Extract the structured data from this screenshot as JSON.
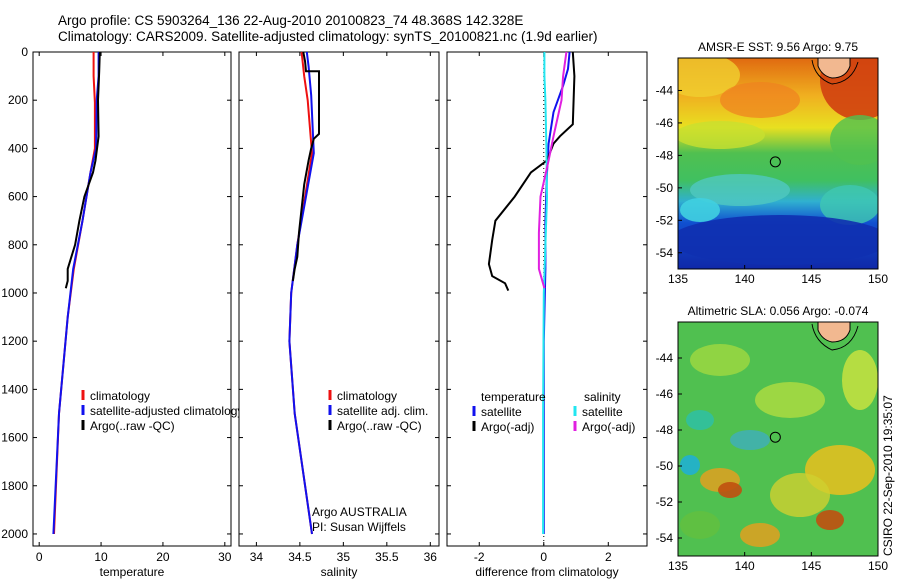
{
  "header": {
    "line1": "Argo profile: CS 5903264_136 22-Aug-2010 20100823_74 48.368S 142.328E",
    "line2": "Climatology: CARS2009. Satellite-adjusted climatology: synTS_20100821.nc (1.9d earlier)"
  },
  "credit": "CSIRO 22-Sep-2010 19:35:07",
  "colors": {
    "climatology": "#ee1111",
    "satellite": "#1111ee",
    "argo": "#000000",
    "sat_salinity": "#22e6f0",
    "argo_adj_salinity": "#e020e0"
  },
  "chart_data": [
    {
      "type": "line",
      "xlabel": "temperature",
      "xlim": [
        -1,
        31
      ],
      "ylim": [
        2050,
        0
      ],
      "xticks": [
        "0",
        "10",
        "20",
        "30"
      ],
      "xtick_values": [
        0,
        10,
        20,
        30
      ],
      "yticks": [
        "0",
        "200",
        "400",
        "600",
        "800",
        "1000",
        "1200",
        "1400",
        "1600",
        "1800",
        "2000"
      ],
      "legend": [
        "climatology",
        "satellite-adjusted climatology",
        "Argo(..raw -QC)"
      ],
      "series": [
        {
          "name": "climatology",
          "color": "#ee1111",
          "x": [
            8.8,
            8.8,
            9.0,
            9.0,
            8.3,
            7.0,
            5.6,
            4.6,
            3.2,
            2.4
          ],
          "y": [
            0,
            100,
            210,
            400,
            500,
            700,
            900,
            1100,
            1500,
            2000
          ]
        },
        {
          "name": "satellite-adjusted climatology",
          "color": "#1111ee",
          "x": [
            9.6,
            9.6,
            9.3,
            9.2,
            8.3,
            7.0,
            5.5,
            4.6,
            3.2,
            2.3
          ],
          "y": [
            0,
            100,
            200,
            400,
            500,
            700,
            900,
            1100,
            1500,
            2000
          ]
        },
        {
          "name": "Argo(..raw -QC)",
          "color": "#000000",
          "x": [
            9.8,
            9.7,
            9.5,
            9.6,
            9.1,
            8.7,
            7.3,
            6.5,
            5.8,
            5.2,
            4.6,
            4.6,
            4.3
          ],
          "y": [
            0,
            80,
            200,
            350,
            450,
            500,
            600,
            700,
            800,
            850,
            900,
            950,
            980
          ]
        }
      ]
    },
    {
      "type": "line",
      "xlabel": "salinity",
      "xlim": [
        33.8,
        36.1
      ],
      "ylim": [
        2050,
        0
      ],
      "xticks": [
        "34",
        "34.5",
        "35",
        "35.5",
        "36"
      ],
      "xtick_values": [
        34,
        34.5,
        35,
        35.5,
        36
      ],
      "legend": [
        "climatology",
        "satellite adj. clim.",
        "Argo(..raw -QC)"
      ],
      "annotation": [
        "Argo AUSTRALIA",
        "PI: Susan Wijffels"
      ],
      "series": [
        {
          "name": "climatology",
          "color": "#ee1111",
          "x": [
            34.52,
            34.55,
            34.59,
            34.64,
            34.56,
            34.47,
            34.4,
            34.38,
            34.44,
            34.56,
            34.64
          ],
          "y": [
            0,
            100,
            200,
            420,
            600,
            800,
            1000,
            1200,
            1500,
            1800,
            2000
          ]
        },
        {
          "name": "satellite adj. clim.",
          "color": "#1111ee",
          "x": [
            34.58,
            34.6,
            34.63,
            34.66,
            34.57,
            34.47,
            34.4,
            34.38,
            34.44,
            34.56,
            34.64
          ],
          "y": [
            0,
            60,
            180,
            420,
            600,
            800,
            1000,
            1200,
            1500,
            1800,
            2000
          ]
        },
        {
          "name": "Argo(..raw -QC)",
          "color": "#000000",
          "x": [
            34.54,
            34.56,
            34.57,
            34.72,
            34.72,
            34.66,
            34.63,
            34.6,
            34.55,
            34.52,
            34.49,
            34.47,
            34.44,
            34.42
          ],
          "y": [
            0,
            40,
            80,
            80,
            340,
            360,
            400,
            450,
            550,
            650,
            750,
            850,
            900,
            950
          ]
        }
      ]
    },
    {
      "type": "line",
      "xlabel": "difference from climatology",
      "xlim": [
        -3,
        3.2
      ],
      "ylim": [
        2050,
        0
      ],
      "xticks": [
        "-2",
        "0",
        "2"
      ],
      "xtick_values": [
        -2,
        0,
        2
      ],
      "legend_headers": [
        "temperature",
        "salinity"
      ],
      "legend": [
        "satellite",
        "Argo(-adj)",
        "satellite",
        "Argo(-adj)"
      ],
      "series": [
        {
          "name": "satellite",
          "color": "#1111ee",
          "x": [
            0.8,
            0.75,
            0.6,
            0.3,
            0.15,
            0.1,
            0.05,
            0.05,
            0,
            0
          ],
          "y": [
            0,
            70,
            140,
            250,
            380,
            500,
            700,
            900,
            1200,
            2000
          ]
        },
        {
          "name": "Argo(-adj)",
          "color": "#000000",
          "x": [
            0.9,
            0.95,
            0.9,
            0.5,
            0.3,
            0.1,
            -0.4,
            -0.9,
            -1.5,
            -1.6,
            -1.7,
            -1.6,
            -1.2,
            -1.1
          ],
          "y": [
            0,
            100,
            300,
            350,
            380,
            450,
            500,
            600,
            700,
            780,
            880,
            930,
            960,
            990
          ]
        },
        {
          "name": "satellite",
          "color": "#22e6f0",
          "x": [
            0.02,
            0.02,
            0.05,
            0.08,
            0.1,
            0.05,
            0,
            -0.02,
            -0.02
          ],
          "y": [
            0,
            100,
            200,
            400,
            600,
            800,
            1000,
            1500,
            2000
          ]
        },
        {
          "name": "Argo(-adj)",
          "color": "#e020e0",
          "x": [
            0.7,
            0.6,
            0.55,
            0.3,
            0.15,
            -0.1,
            -0.15,
            -0.15,
            0.02
          ],
          "y": [
            0,
            100,
            200,
            350,
            450,
            600,
            750,
            900,
            980
          ]
        }
      ]
    },
    {
      "type": "heatmap",
      "title": "AMSR-E SST: 9.56  Argo: 9.75",
      "xlim": [
        135,
        150
      ],
      "ylim": [
        -55,
        -42
      ],
      "xticks": [
        "135",
        "140",
        "145",
        "150"
      ],
      "xtick_values": [
        135,
        140,
        145,
        150
      ],
      "yticks": [
        "-44",
        "-46",
        "-48",
        "-50",
        "-52",
        "-54"
      ],
      "ytick_values": [
        -44,
        -46,
        -48,
        -50,
        -52,
        -54
      ],
      "marker": {
        "lon": 142.3,
        "lat": -48.4
      }
    },
    {
      "type": "heatmap",
      "title": "Altimetric SLA: 0.056  Argo: -0.074",
      "xlim": [
        135,
        150
      ],
      "ylim": [
        -55,
        -42
      ],
      "xticks": [
        "135",
        "140",
        "145",
        "150"
      ],
      "xtick_values": [
        135,
        140,
        145,
        150
      ],
      "yticks": [
        "-44",
        "-46",
        "-48",
        "-50",
        "-52",
        "-54"
      ],
      "ytick_values": [
        -44,
        -46,
        -48,
        -50,
        -52,
        -54
      ],
      "marker": {
        "lon": 142.3,
        "lat": -48.4
      }
    }
  ]
}
